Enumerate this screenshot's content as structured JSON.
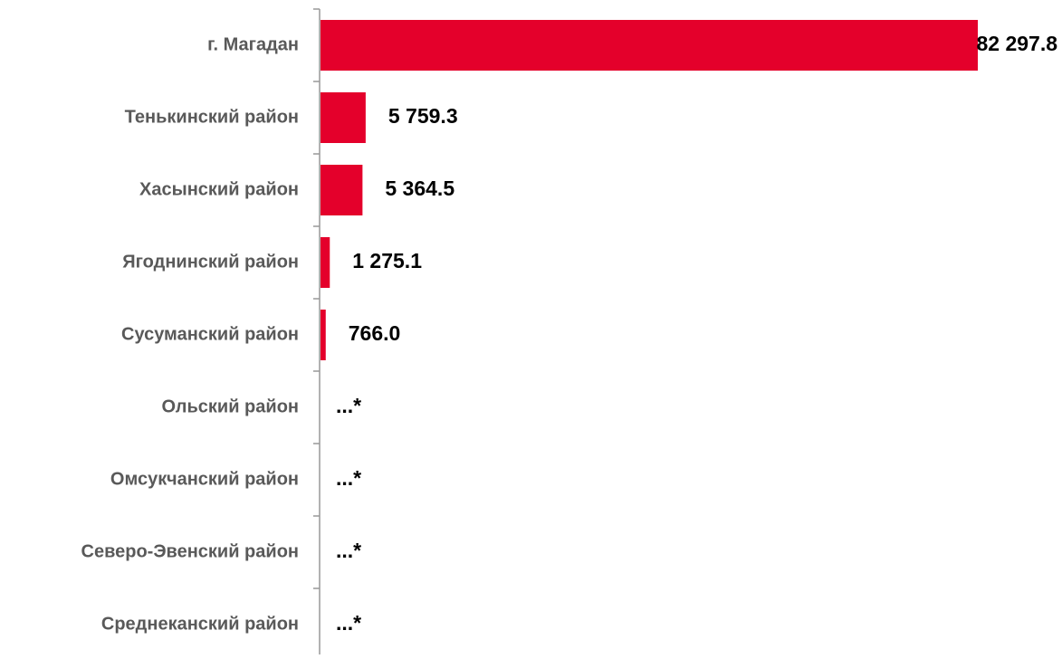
{
  "chart_data": {
    "type": "barh",
    "categories": [
      "г. Магадан",
      "Тенькинский район",
      "Хасынский район",
      "Ягоднинский район",
      "Сусуманский район",
      "Ольский район",
      "Омсукчанский район",
      "Северо-Эвенский район",
      "Среднеканский район"
    ],
    "values": [
      82297.8,
      5759.3,
      5364.5,
      1275.1,
      766.0,
      null,
      null,
      null,
      null
    ],
    "value_labels": [
      "82 297.8",
      "5 759.3",
      "5 364.5",
      "1 275.1",
      "766.0",
      "...*",
      "...*",
      "...*",
      "...*"
    ],
    "color": "#e4002b"
  }
}
